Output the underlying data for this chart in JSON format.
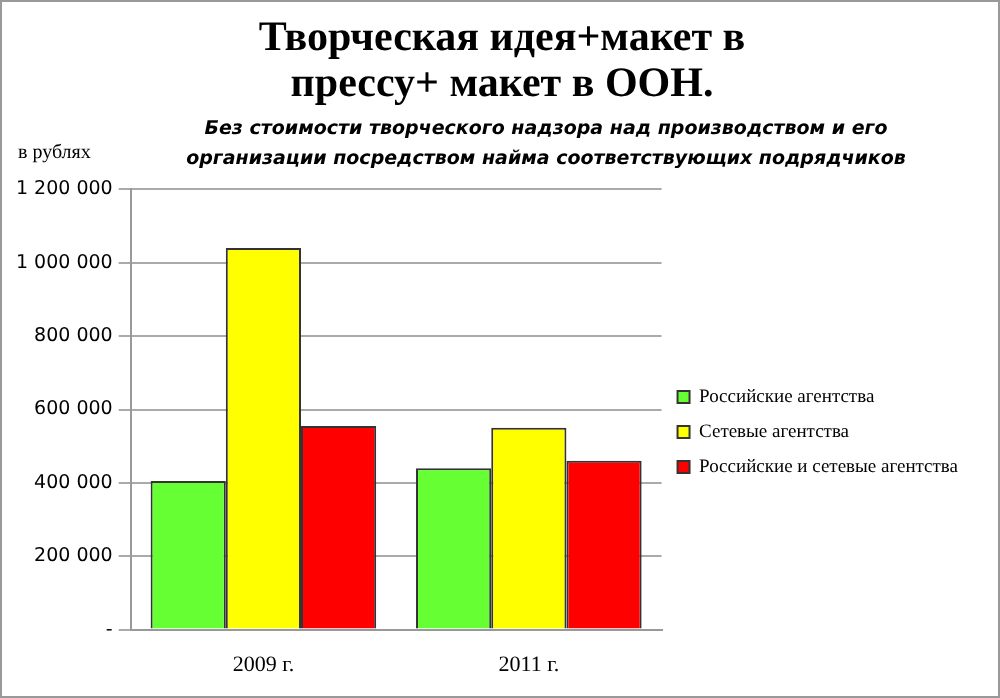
{
  "chart_data": {
    "type": "bar",
    "title": "Творческая идея+макет в прессу+ макет в ООН.",
    "subtitle": "Без стоимости творческого надзора над производством и его организации посредством найма соответствующих подрядчиков",
    "ylabel": "в рублях",
    "categories": [
      "2009 г.",
      "2011 г."
    ],
    "series": [
      {
        "name": "Российские агентства",
        "color": "#66ff33",
        "values": [
          405000,
          440000
        ]
      },
      {
        "name": "Сетевые агентства",
        "color": "#ffff00",
        "values": [
          1040000,
          550000
        ]
      },
      {
        "name": "Российские и сетевые агентства",
        "color": "#ff0000",
        "values": [
          555000,
          460000
        ]
      }
    ],
    "ylim": [
      0,
      1200000
    ],
    "yticks": [
      {
        "value": 0,
        "label": "-"
      },
      {
        "value": 200000,
        "label": "200 000"
      },
      {
        "value": 400000,
        "label": "400 000"
      },
      {
        "value": 600000,
        "label": "600 000"
      },
      {
        "value": 800000,
        "label": "800 000"
      },
      {
        "value": 1000000,
        "label": "1 000 000"
      },
      {
        "value": 1200000,
        "label": "1 200 000"
      }
    ],
    "grid": "y",
    "legend": "right"
  }
}
